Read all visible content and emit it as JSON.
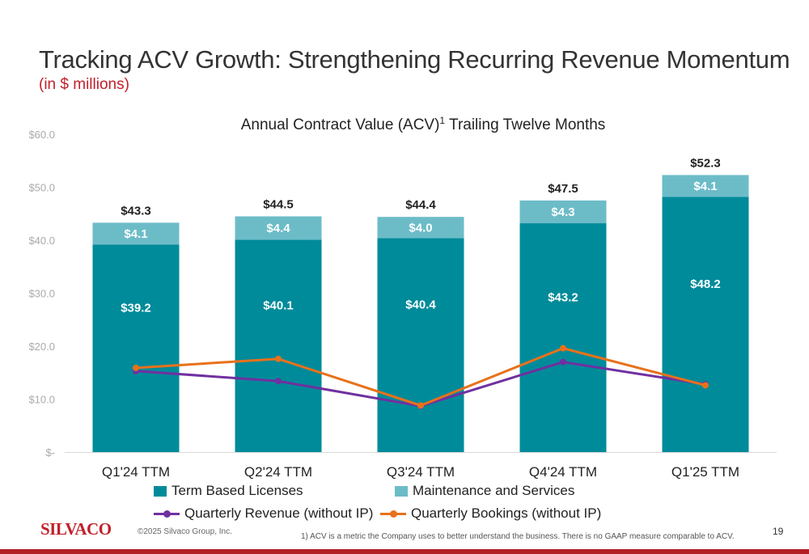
{
  "slide": {
    "title": "Tracking ACV Growth: Strengthening Recurring Revenue Momentum",
    "subtitle": "(in $ millions)",
    "logo": "SILVACO",
    "copyright": "©2025 Silvaco Group, Inc.",
    "footnote": "1)  ACV is a metric the Company uses to better understand the business. There is no GAAP measure comparable to ACV.",
    "page_number": "19"
  },
  "chart_data": {
    "type": "bar",
    "stacked": true,
    "title": "Annual Contract Value (ACV)",
    "title_superscript": "1",
    "title_suffix": " Trailing Twelve Months",
    "categories": [
      "Q1'24 TTM",
      "Q2'24 TTM",
      "Q3'24 TTM",
      "Q4'24 TTM",
      "Q1'25 TTM"
    ],
    "series": [
      {
        "name": "Term Based Licenses",
        "kind": "bar",
        "color": "#008b9a",
        "values": [
          39.2,
          40.1,
          40.4,
          43.2,
          48.2
        ],
        "labels": [
          "$39.2",
          "$40.1",
          "$40.4",
          "$43.2",
          "$48.2"
        ]
      },
      {
        "name": "Maintenance and Services",
        "kind": "bar",
        "color": "#6cbcc8",
        "values": [
          4.1,
          4.4,
          4.0,
          4.3,
          4.1
        ],
        "labels": [
          "$4.1",
          "$4.4",
          "$4.0",
          "$4.3",
          "$4.1"
        ]
      },
      {
        "name": "Quarterly Revenue (without IP)",
        "kind": "line",
        "color": "#7030a0",
        "values": [
          15.3,
          13.4,
          8.7,
          17.0,
          12.8
        ]
      },
      {
        "name": "Quarterly Bookings (without IP)",
        "kind": "line",
        "color": "#e8711a",
        "values": [
          15.9,
          17.6,
          8.8,
          19.6,
          12.6
        ]
      }
    ],
    "totals": [
      43.3,
      44.5,
      44.4,
      47.5,
      52.3
    ],
    "total_labels": [
      "$43.3",
      "$44.5",
      "$44.4",
      "$47.5",
      "$52.3"
    ],
    "ylim": [
      0,
      60
    ],
    "yticks": [
      0,
      10,
      20,
      30,
      40,
      50,
      60
    ],
    "ytick_labels": [
      "$-",
      "$10.0",
      "$20.0",
      "$30.0",
      "$40.0",
      "$50.0",
      "$60.0"
    ],
    "grid": false,
    "legend_position": "bottom"
  }
}
